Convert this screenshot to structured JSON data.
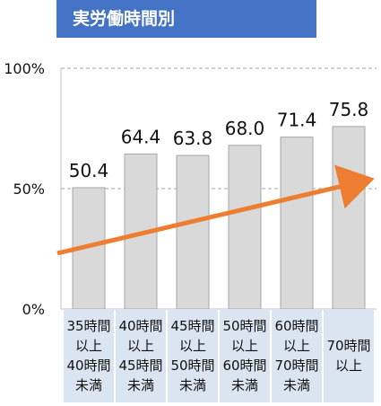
{
  "chart_data": {
    "type": "bar",
    "title": "実労働時間別",
    "categories": [
      "35時間\n以上\n40時間\n未満",
      "40時間\n以上\n45時間\n未満",
      "45時間\n以上\n50時間\n未満",
      "50時間\n以上\n60時間\n未満",
      "60時間\n以上\n70時間\n未満",
      "70時間\n以上"
    ],
    "values": [
      50.4,
      64.4,
      63.8,
      68.0,
      71.4,
      75.8
    ],
    "value_labels": [
      "50.4",
      "64.4",
      "63.8",
      "68.0",
      "71.4",
      "75.8"
    ],
    "ylim": [
      0,
      100
    ],
    "yticks": [
      "0%",
      "50%",
      "100%"
    ],
    "trend_arrow": true,
    "grid": "dashed at 50% and 100%",
    "colors": {
      "title_bg": "#4472c4",
      "bar_fill": "#d9d9d9",
      "bar_stroke": "#a6a6a6",
      "category_bg": "#dbe5f1",
      "arrow": "#ed7d31"
    }
  }
}
